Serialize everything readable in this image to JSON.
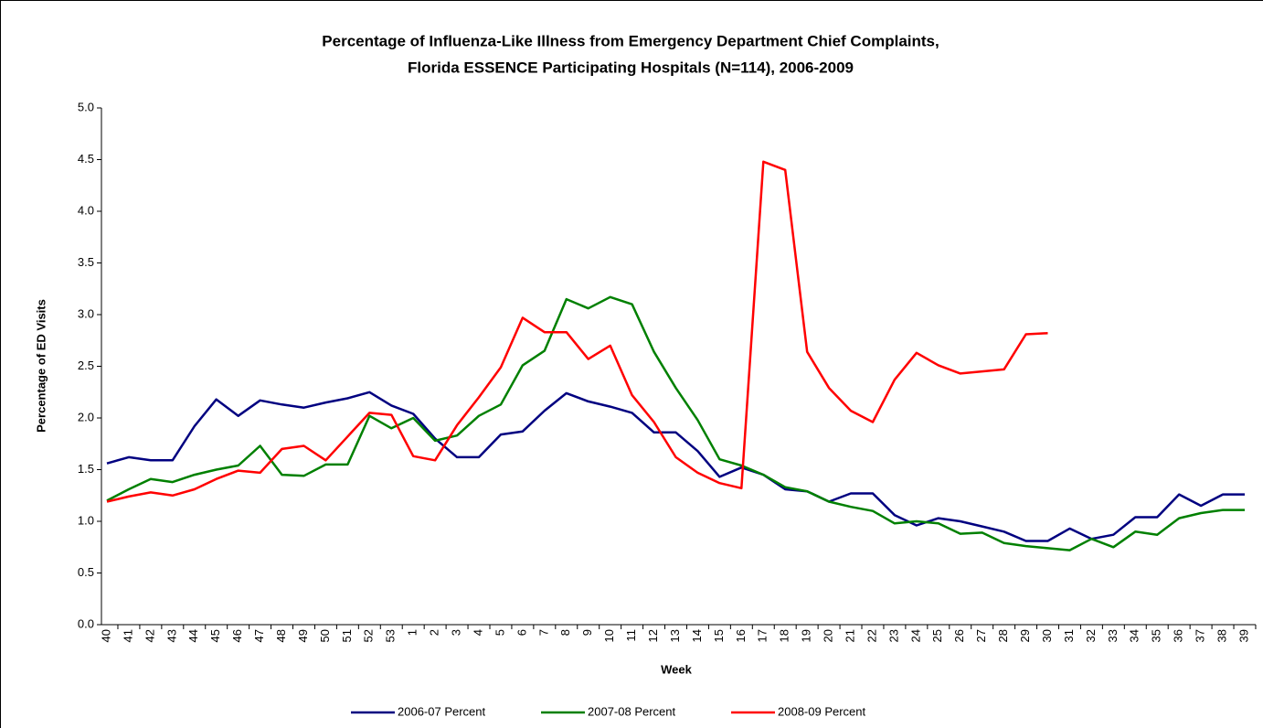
{
  "chart_data": {
    "type": "line",
    "title": [
      "Percentage of Influenza-Like Illness from Emergency Department Chief Complaints,",
      "Florida ESSENCE Participating Hospitals (N=114), 2006-2009"
    ],
    "x_label": "Week",
    "y_label": "Percentage of ED Visits",
    "categories": [
      "40",
      "41",
      "42",
      "43",
      "44",
      "45",
      "46",
      "47",
      "48",
      "49",
      "50",
      "51",
      "52",
      "53",
      "1",
      "2",
      "3",
      "4",
      "5",
      "6",
      "7",
      "8",
      "9",
      "10",
      "11",
      "12",
      "13",
      "14",
      "15",
      "16",
      "17",
      "18",
      "19",
      "20",
      "21",
      "22",
      "23",
      "24",
      "25",
      "26",
      "27",
      "28",
      "29",
      "30",
      "31",
      "32",
      "33",
      "34",
      "35",
      "36",
      "37",
      "38",
      "39"
    ],
    "series": [
      {
        "name": "2006-07 Percent",
        "color": "#000080",
        "values": [
          1.56,
          1.62,
          1.59,
          1.59,
          1.92,
          2.18,
          2.02,
          2.17,
          2.13,
          2.1,
          2.15,
          2.19,
          2.25,
          2.12,
          2.04,
          1.8,
          1.62,
          1.62,
          1.84,
          1.87,
          2.07,
          2.24,
          2.16,
          2.11,
          2.05,
          1.86,
          1.86,
          1.68,
          1.43,
          1.52,
          1.45,
          1.31,
          1.29,
          1.19,
          1.27,
          1.27,
          1.06,
          0.96,
          1.03,
          1.0,
          0.95,
          0.9,
          0.81,
          0.81,
          0.93,
          0.83,
          0.87,
          1.04,
          1.04,
          1.26,
          1.15,
          1.26,
          1.26
        ]
      },
      {
        "name": "2007-08 Percent",
        "color": "#008000",
        "values": [
          1.2,
          1.31,
          1.41,
          1.38,
          1.45,
          1.5,
          1.54,
          1.73,
          1.45,
          1.44,
          1.55,
          1.55,
          2.02,
          1.9,
          2.0,
          1.78,
          1.83,
          2.02,
          2.13,
          2.51,
          2.65,
          3.15,
          3.06,
          3.17,
          3.1,
          2.64,
          2.29,
          1.98,
          1.6,
          1.54,
          1.45,
          1.33,
          1.29,
          1.19,
          1.14,
          1.1,
          0.98,
          1.0,
          0.98,
          0.88,
          0.89,
          0.79,
          0.76,
          0.74,
          0.72,
          0.83,
          0.75,
          0.9,
          0.87,
          1.03,
          1.08,
          1.11,
          1.11
        ]
      },
      {
        "name": "2008-09 Percent",
        "color": "#ff0000",
        "values": [
          1.19,
          1.24,
          1.28,
          1.25,
          1.31,
          1.41,
          1.49,
          1.47,
          1.7,
          1.73,
          1.59,
          1.82,
          2.05,
          2.03,
          1.63,
          1.59,
          1.93,
          2.2,
          2.49,
          2.97,
          2.83,
          2.83,
          2.57,
          2.7,
          2.22,
          1.96,
          1.62,
          1.47,
          1.37,
          1.32,
          4.48,
          4.4,
          2.64,
          2.29,
          2.07,
          1.96,
          2.37,
          2.63,
          2.51,
          2.43,
          2.45,
          2.47,
          2.81,
          2.82,
          null,
          null,
          null,
          null,
          null,
          null,
          null,
          null,
          null
        ]
      }
    ],
    "ylim": [
      0,
      5
    ],
    "yticks": [
      {
        "value": 0,
        "label": "0.0"
      },
      0.5,
      {
        "value": 1,
        "label": "1.0"
      },
      1.5,
      {
        "value": 2,
        "label": "2.0"
      },
      2.5,
      {
        "value": 3,
        "label": "3.0"
      },
      3.5,
      {
        "value": 4,
        "label": "4.0"
      },
      4.5,
      {
        "value": 5,
        "label": "5.0"
      }
    ],
    "grid": false,
    "legend": "bottom"
  }
}
